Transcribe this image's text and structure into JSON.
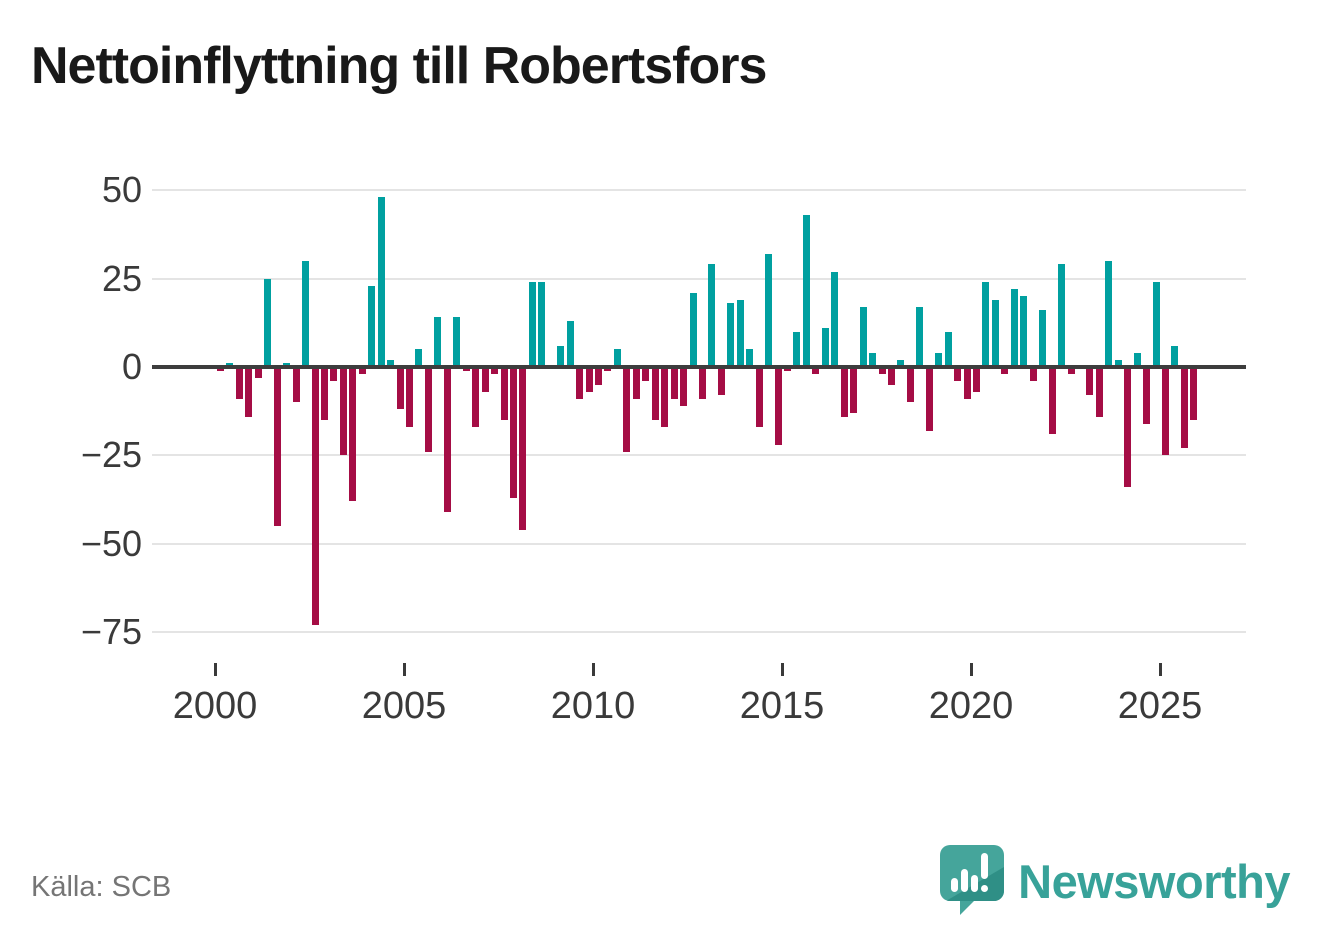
{
  "title": "Nettoinflyttning till Robertsfors",
  "source": "Källa: SCB",
  "brand": {
    "name": "Newsworthy",
    "icon": "bar-chart-speech-bubble-icon",
    "color": "#38a299"
  },
  "colors": {
    "positive_bar": "#00a0a0",
    "negative_bar": "#a50d45",
    "zero_line": "#3d3d3d",
    "gridline": "#e4e4e4",
    "axis_text": "#3a3a3a",
    "title_text": "#191919",
    "source_text": "#757575"
  },
  "chart_data": {
    "type": "bar",
    "title": "Nettoinflyttning till Robertsfors",
    "frequency": "quarterly",
    "start_period": "2000-Q1",
    "end_period": "2025-Q4",
    "xlabel": "",
    "ylabel": "",
    "ylim": [
      -75,
      50
    ],
    "grid": true,
    "y_ticks": [
      50,
      25,
      0,
      -25,
      -50,
      -75
    ],
    "y_tick_labels": [
      "50",
      "25",
      "0",
      "−25",
      "−50",
      "−75"
    ],
    "x_tick_years": [
      2000,
      2005,
      2010,
      2015,
      2020,
      2025
    ],
    "x_tick_labels": [
      "2000",
      "2005",
      "2010",
      "2015",
      "2020",
      "2025"
    ],
    "values": [
      -1,
      1,
      -9,
      -14,
      -3,
      25,
      -45,
      1,
      -10,
      30,
      -73,
      -15,
      -4,
      -25,
      -38,
      -2,
      23,
      48,
      2,
      -12,
      -17,
      5,
      -24,
      14,
      -41,
      14,
      -1,
      -17,
      -7,
      -2,
      -15,
      -37,
      -46,
      24,
      24,
      0,
      6,
      13,
      -9,
      -7,
      -5,
      -1,
      5,
      -24,
      -9,
      -4,
      -15,
      -17,
      -9,
      -11,
      21,
      -9,
      29,
      -8,
      18,
      19,
      5,
      -17,
      32,
      -22,
      -1,
      10,
      43,
      -2,
      11,
      27,
      -14,
      -13,
      17,
      4,
      -2,
      -5,
      2,
      -10,
      17,
      -18,
      4,
      10,
      -4,
      -9,
      -7,
      24,
      19,
      -2,
      22,
      20,
      -4,
      16,
      -19,
      29,
      -2,
      0,
      -8,
      -14,
      30,
      2,
      -34,
      4,
      -16,
      24,
      -25,
      6,
      -23,
      -15
    ]
  }
}
